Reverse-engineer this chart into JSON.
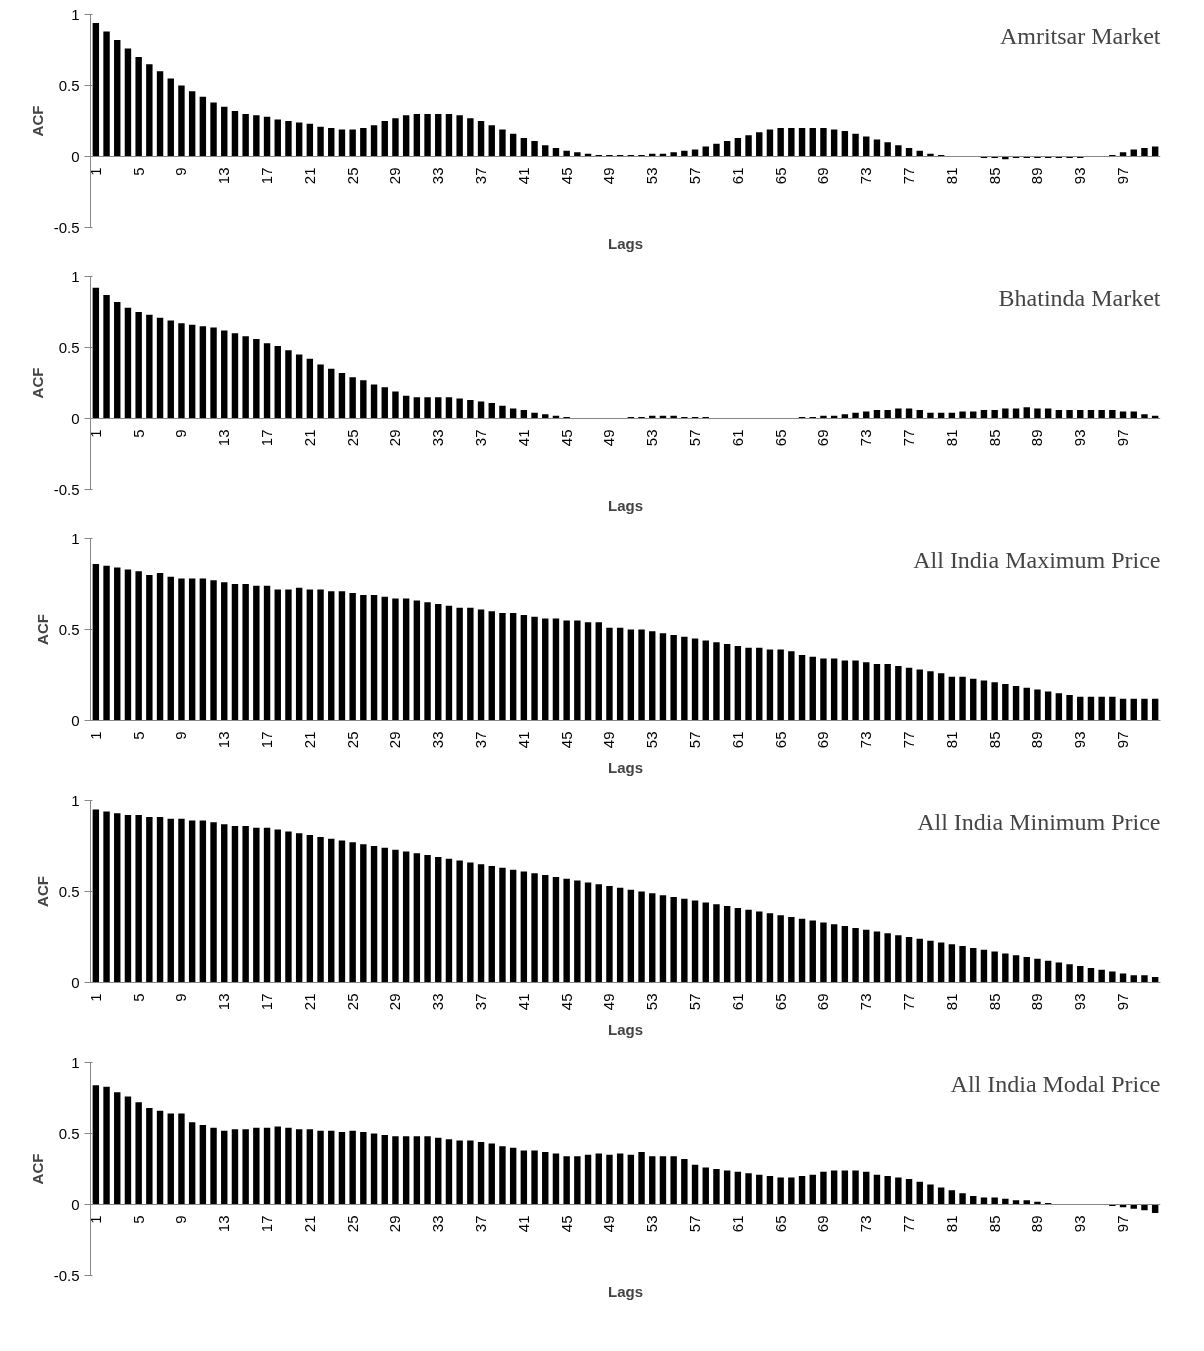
{
  "chart_data": [
    {
      "type": "bar",
      "title": "Amritsar Market",
      "xlabel": "Lags",
      "ylabel": "ACF",
      "color": "#000000",
      "grid": false,
      "ylim": [
        -0.5,
        1
      ],
      "yticks": [
        -0.5,
        0,
        0.5,
        1
      ],
      "categories": [
        "1",
        null,
        null,
        null,
        "5",
        null,
        null,
        null,
        "9",
        null,
        null,
        null,
        "13",
        null,
        null,
        null,
        "17",
        null,
        null,
        null,
        "21",
        null,
        null,
        null,
        "25",
        null,
        null,
        null,
        "29",
        null,
        null,
        null,
        "33",
        null,
        null,
        null,
        "37",
        null,
        null,
        null,
        "41",
        null,
        null,
        null,
        "45",
        null,
        null,
        null,
        "49",
        null,
        null,
        null,
        "53",
        null,
        null,
        null,
        "57",
        null,
        null,
        null,
        "61",
        null,
        null,
        null,
        "65",
        null,
        null,
        null,
        "69",
        null,
        null,
        null,
        "73",
        null,
        null,
        null,
        "77",
        null,
        null,
        null,
        "81",
        null,
        null,
        null,
        "85",
        null,
        null,
        null,
        "89",
        null,
        null,
        null,
        "93",
        null,
        null,
        null,
        "97",
        null,
        null,
        null
      ],
      "values": [
        0.94,
        0.88,
        0.82,
        0.76,
        0.7,
        0.65,
        0.6,
        0.55,
        0.5,
        0.46,
        0.42,
        0.38,
        0.35,
        0.32,
        0.3,
        0.29,
        0.28,
        0.26,
        0.25,
        0.24,
        0.23,
        0.21,
        0.2,
        0.19,
        0.19,
        0.2,
        0.22,
        0.25,
        0.27,
        0.29,
        0.3,
        0.3,
        0.3,
        0.3,
        0.29,
        0.27,
        0.25,
        0.22,
        0.19,
        0.16,
        0.13,
        0.11,
        0.08,
        0.06,
        0.04,
        0.03,
        0.02,
        0.01,
        0.01,
        0.01,
        0.01,
        0.01,
        0.02,
        0.02,
        0.03,
        0.04,
        0.05,
        0.07,
        0.09,
        0.11,
        0.13,
        0.15,
        0.17,
        0.19,
        0.2,
        0.2,
        0.2,
        0.2,
        0.2,
        0.19,
        0.18,
        0.16,
        0.14,
        0.12,
        0.1,
        0.08,
        0.06,
        0.04,
        0.02,
        0.01,
        0.0,
        0.0,
        0.0,
        -0.01,
        -0.01,
        -0.02,
        -0.01,
        -0.01,
        -0.01,
        -0.01,
        -0.01,
        -0.01,
        -0.01,
        0.0,
        0.0,
        0.01,
        0.03,
        0.05,
        0.06,
        0.07
      ]
    },
    {
      "type": "bar",
      "title": "Bhatinda Market",
      "xlabel": "Lags",
      "ylabel": "ACF",
      "color": "#000000",
      "grid": false,
      "ylim": [
        -0.5,
        1
      ],
      "yticks": [
        -0.5,
        0,
        0.5,
        1
      ],
      "categories": [
        "1",
        null,
        null,
        null,
        "5",
        null,
        null,
        null,
        "9",
        null,
        null,
        null,
        "13",
        null,
        null,
        null,
        "17",
        null,
        null,
        null,
        "21",
        null,
        null,
        null,
        "25",
        null,
        null,
        null,
        "29",
        null,
        null,
        null,
        "33",
        null,
        null,
        null,
        "37",
        null,
        null,
        null,
        "41",
        null,
        null,
        null,
        "45",
        null,
        null,
        null,
        "49",
        null,
        null,
        null,
        "53",
        null,
        null,
        null,
        "57",
        null,
        null,
        null,
        "61",
        null,
        null,
        null,
        "65",
        null,
        null,
        null,
        "69",
        null,
        null,
        null,
        "73",
        null,
        null,
        null,
        "77",
        null,
        null,
        null,
        "81",
        null,
        null,
        null,
        "85",
        null,
        null,
        null,
        "89",
        null,
        null,
        null,
        "93",
        null,
        null,
        null,
        "97",
        null,
        null,
        null
      ],
      "values": [
        0.92,
        0.87,
        0.82,
        0.78,
        0.75,
        0.73,
        0.71,
        0.69,
        0.67,
        0.66,
        0.65,
        0.64,
        0.62,
        0.6,
        0.58,
        0.56,
        0.53,
        0.51,
        0.48,
        0.45,
        0.42,
        0.38,
        0.35,
        0.32,
        0.29,
        0.27,
        0.24,
        0.22,
        0.19,
        0.16,
        0.15,
        0.15,
        0.15,
        0.15,
        0.14,
        0.13,
        0.12,
        0.11,
        0.09,
        0.07,
        0.06,
        0.04,
        0.03,
        0.02,
        0.01,
        0.0,
        0.0,
        0.0,
        0.0,
        0.0,
        0.01,
        0.01,
        0.02,
        0.02,
        0.02,
        0.01,
        0.01,
        0.01,
        0.0,
        0.0,
        0.0,
        0.0,
        0.0,
        0.0,
        0.0,
        0.0,
        0.01,
        0.01,
        0.02,
        0.02,
        0.03,
        0.04,
        0.05,
        0.06,
        0.06,
        0.07,
        0.07,
        0.06,
        0.04,
        0.04,
        0.04,
        0.05,
        0.05,
        0.06,
        0.06,
        0.07,
        0.07,
        0.08,
        0.07,
        0.07,
        0.06,
        0.06,
        0.06,
        0.06,
        0.06,
        0.06,
        0.05,
        0.05,
        0.03,
        0.02
      ]
    },
    {
      "type": "bar",
      "title": "All India Maximum Price",
      "xlabel": "Lags",
      "ylabel": "ACF",
      "color": "#000000",
      "grid": false,
      "ylim": [
        0,
        1
      ],
      "yticks": [
        0,
        0.5,
        1
      ],
      "categories": [
        "1",
        null,
        null,
        null,
        "5",
        null,
        null,
        null,
        "9",
        null,
        null,
        null,
        "13",
        null,
        null,
        null,
        "17",
        null,
        null,
        null,
        "21",
        null,
        null,
        null,
        "25",
        null,
        null,
        null,
        "29",
        null,
        null,
        null,
        "33",
        null,
        null,
        null,
        "37",
        null,
        null,
        null,
        "41",
        null,
        null,
        null,
        "45",
        null,
        null,
        null,
        "49",
        null,
        null,
        null,
        "53",
        null,
        null,
        null,
        "57",
        null,
        null,
        null,
        "61",
        null,
        null,
        null,
        "65",
        null,
        null,
        null,
        "69",
        null,
        null,
        null,
        "73",
        null,
        null,
        null,
        "77",
        null,
        null,
        null,
        "81",
        null,
        null,
        null,
        "85",
        null,
        null,
        null,
        "89",
        null,
        null,
        null,
        "93",
        null,
        null,
        null,
        "97",
        null,
        null,
        null
      ],
      "values": [
        0.86,
        0.85,
        0.84,
        0.83,
        0.82,
        0.8,
        0.81,
        0.79,
        0.78,
        0.78,
        0.78,
        0.77,
        0.76,
        0.75,
        0.75,
        0.74,
        0.74,
        0.72,
        0.72,
        0.73,
        0.72,
        0.72,
        0.71,
        0.71,
        0.7,
        0.69,
        0.69,
        0.68,
        0.67,
        0.67,
        0.66,
        0.65,
        0.64,
        0.63,
        0.62,
        0.62,
        0.61,
        0.6,
        0.59,
        0.59,
        0.58,
        0.57,
        0.56,
        0.56,
        0.55,
        0.55,
        0.54,
        0.54,
        0.51,
        0.51,
        0.5,
        0.5,
        0.49,
        0.48,
        0.47,
        0.46,
        0.45,
        0.44,
        0.43,
        0.42,
        0.41,
        0.4,
        0.4,
        0.39,
        0.39,
        0.38,
        0.36,
        0.35,
        0.34,
        0.34,
        0.33,
        0.33,
        0.32,
        0.31,
        0.31,
        0.3,
        0.29,
        0.28,
        0.27,
        0.26,
        0.24,
        0.24,
        0.23,
        0.22,
        0.21,
        0.2,
        0.19,
        0.18,
        0.17,
        0.16,
        0.15,
        0.14,
        0.13,
        0.13,
        0.13,
        0.13,
        0.12,
        0.12,
        0.12,
        0.12
      ]
    },
    {
      "type": "bar",
      "title": "All India Minimum Price",
      "xlabel": "Lags",
      "ylabel": "ACF",
      "color": "#000000",
      "grid": false,
      "ylim": [
        0,
        1
      ],
      "yticks": [
        0,
        0.5,
        1
      ],
      "categories": [
        "1",
        null,
        null,
        null,
        "5",
        null,
        null,
        null,
        "9",
        null,
        null,
        null,
        "13",
        null,
        null,
        null,
        "17",
        null,
        null,
        null,
        "21",
        null,
        null,
        null,
        "25",
        null,
        null,
        null,
        "29",
        null,
        null,
        null,
        "33",
        null,
        null,
        null,
        "37",
        null,
        null,
        null,
        "41",
        null,
        null,
        null,
        "45",
        null,
        null,
        null,
        "49",
        null,
        null,
        null,
        "53",
        null,
        null,
        null,
        "57",
        null,
        null,
        null,
        "61",
        null,
        null,
        null,
        "65",
        null,
        null,
        null,
        "69",
        null,
        null,
        null,
        "73",
        null,
        null,
        null,
        "77",
        null,
        null,
        null,
        "81",
        null,
        null,
        null,
        "85",
        null,
        null,
        null,
        "89",
        null,
        null,
        null,
        "93",
        null,
        null,
        null,
        "97",
        null,
        null,
        null
      ],
      "values": [
        0.95,
        0.94,
        0.93,
        0.92,
        0.92,
        0.91,
        0.91,
        0.9,
        0.9,
        0.89,
        0.89,
        0.88,
        0.87,
        0.86,
        0.86,
        0.85,
        0.85,
        0.84,
        0.83,
        0.82,
        0.81,
        0.8,
        0.79,
        0.78,
        0.77,
        0.76,
        0.75,
        0.74,
        0.73,
        0.72,
        0.71,
        0.7,
        0.69,
        0.68,
        0.67,
        0.66,
        0.65,
        0.64,
        0.63,
        0.62,
        0.61,
        0.6,
        0.59,
        0.58,
        0.57,
        0.56,
        0.55,
        0.54,
        0.53,
        0.52,
        0.51,
        0.5,
        0.49,
        0.48,
        0.47,
        0.46,
        0.45,
        0.44,
        0.43,
        0.42,
        0.41,
        0.4,
        0.39,
        0.38,
        0.37,
        0.36,
        0.35,
        0.34,
        0.33,
        0.32,
        0.31,
        0.3,
        0.29,
        0.28,
        0.27,
        0.26,
        0.25,
        0.24,
        0.23,
        0.22,
        0.21,
        0.2,
        0.19,
        0.18,
        0.17,
        0.16,
        0.15,
        0.14,
        0.13,
        0.12,
        0.11,
        0.1,
        0.09,
        0.08,
        0.07,
        0.06,
        0.05,
        0.04,
        0.04,
        0.03
      ]
    },
    {
      "type": "bar",
      "title": "All India Modal Price",
      "xlabel": "Lags",
      "ylabel": "ACF",
      "color": "#000000",
      "grid": false,
      "ylim": [
        -0.5,
        1
      ],
      "yticks": [
        -0.5,
        0,
        0.5,
        1
      ],
      "categories": [
        "1",
        null,
        null,
        null,
        "5",
        null,
        null,
        null,
        "9",
        null,
        null,
        null,
        "13",
        null,
        null,
        null,
        "17",
        null,
        null,
        null,
        "21",
        null,
        null,
        null,
        "25",
        null,
        null,
        null,
        "29",
        null,
        null,
        null,
        "33",
        null,
        null,
        null,
        "37",
        null,
        null,
        null,
        "41",
        null,
        null,
        null,
        "45",
        null,
        null,
        null,
        "49",
        null,
        null,
        null,
        "53",
        null,
        null,
        null,
        "57",
        null,
        null,
        null,
        "61",
        null,
        null,
        null,
        "65",
        null,
        null,
        null,
        "69",
        null,
        null,
        null,
        "73",
        null,
        null,
        null,
        "77",
        null,
        null,
        null,
        "81",
        null,
        null,
        null,
        "85",
        null,
        null,
        null,
        "89",
        null,
        null,
        null,
        "93",
        null,
        null,
        null,
        "97",
        null,
        null,
        null
      ],
      "values": [
        0.84,
        0.83,
        0.79,
        0.76,
        0.72,
        0.68,
        0.66,
        0.64,
        0.64,
        0.58,
        0.56,
        0.54,
        0.52,
        0.53,
        0.53,
        0.54,
        0.54,
        0.55,
        0.54,
        0.53,
        0.53,
        0.52,
        0.52,
        0.51,
        0.52,
        0.51,
        0.5,
        0.49,
        0.48,
        0.48,
        0.48,
        0.48,
        0.47,
        0.46,
        0.45,
        0.45,
        0.44,
        0.43,
        0.41,
        0.4,
        0.38,
        0.38,
        0.37,
        0.36,
        0.34,
        0.34,
        0.35,
        0.36,
        0.35,
        0.36,
        0.35,
        0.37,
        0.34,
        0.34,
        0.34,
        0.32,
        0.28,
        0.26,
        0.25,
        0.24,
        0.23,
        0.22,
        0.21,
        0.2,
        0.19,
        0.19,
        0.2,
        0.21,
        0.23,
        0.24,
        0.24,
        0.24,
        0.23,
        0.21,
        0.2,
        0.19,
        0.18,
        0.16,
        0.14,
        0.12,
        0.1,
        0.08,
        0.06,
        0.05,
        0.05,
        0.04,
        0.03,
        0.03,
        0.02,
        0.01,
        0.0,
        0.0,
        0.0,
        0.0,
        0.0,
        -0.01,
        -0.02,
        -0.03,
        -0.04,
        -0.06
      ]
    }
  ]
}
